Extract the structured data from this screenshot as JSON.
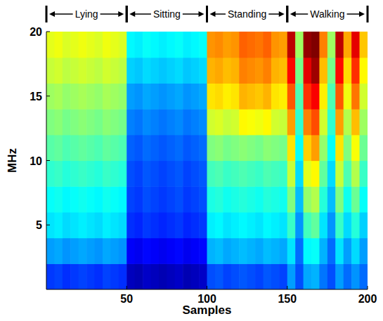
{
  "chart_data": {
    "type": "heatmap",
    "xlabel": "Samples",
    "ylabel": "MHz",
    "xlim": [
      0,
      200
    ],
    "ylim": [
      0,
      20
    ],
    "xticks": [
      50,
      100,
      150,
      200
    ],
    "yticks": [
      5,
      10,
      15,
      20
    ],
    "color_range": [
      0,
      1
    ],
    "segments": [
      {
        "label": "Lying",
        "start": 0,
        "end": 50
      },
      {
        "label": "Sitting",
        "start": 50,
        "end": 100
      },
      {
        "label": "Standing",
        "start": 100,
        "end": 150
      },
      {
        "label": "Walking",
        "start": 150,
        "end": 200
      }
    ],
    "cells": [
      [
        0.18,
        0.19,
        0.17,
        0.18,
        0.19,
        0.18,
        0.17,
        0.19,
        0.18,
        0.17,
        0.06,
        0.05,
        0.07,
        0.06,
        0.05,
        0.06,
        0.07,
        0.05,
        0.06,
        0.07,
        0.2,
        0.21,
        0.19,
        0.2,
        0.21,
        0.2,
        0.19,
        0.21,
        0.2,
        0.19,
        0.28,
        0.2,
        0.29,
        0.3,
        0.24,
        0.2,
        0.28,
        0.23,
        0.27,
        0.23
      ],
      [
        0.28,
        0.29,
        0.27,
        0.28,
        0.29,
        0.28,
        0.27,
        0.29,
        0.28,
        0.27,
        0.12,
        0.11,
        0.13,
        0.12,
        0.11,
        0.12,
        0.13,
        0.11,
        0.12,
        0.13,
        0.3,
        0.31,
        0.29,
        0.3,
        0.31,
        0.3,
        0.29,
        0.31,
        0.3,
        0.29,
        0.35,
        0.23,
        0.37,
        0.38,
        0.3,
        0.23,
        0.35,
        0.28,
        0.34,
        0.28
      ],
      [
        0.35,
        0.36,
        0.34,
        0.35,
        0.36,
        0.35,
        0.34,
        0.36,
        0.35,
        0.34,
        0.17,
        0.16,
        0.18,
        0.17,
        0.16,
        0.17,
        0.18,
        0.16,
        0.17,
        0.18,
        0.36,
        0.37,
        0.35,
        0.36,
        0.37,
        0.36,
        0.35,
        0.37,
        0.36,
        0.35,
        0.43,
        0.27,
        0.44,
        0.47,
        0.35,
        0.27,
        0.43,
        0.34,
        0.41,
        0.33
      ],
      [
        0.38,
        0.39,
        0.37,
        0.38,
        0.39,
        0.38,
        0.37,
        0.39,
        0.38,
        0.37,
        0.19,
        0.18,
        0.2,
        0.19,
        0.18,
        0.19,
        0.2,
        0.18,
        0.19,
        0.2,
        0.4,
        0.41,
        0.39,
        0.4,
        0.41,
        0.4,
        0.39,
        0.41,
        0.4,
        0.39,
        0.5,
        0.31,
        0.52,
        0.55,
        0.41,
        0.31,
        0.5,
        0.39,
        0.48,
        0.38
      ],
      [
        0.42,
        0.43,
        0.41,
        0.42,
        0.43,
        0.42,
        0.41,
        0.43,
        0.42,
        0.41,
        0.2,
        0.19,
        0.21,
        0.2,
        0.19,
        0.2,
        0.21,
        0.19,
        0.2,
        0.21,
        0.44,
        0.45,
        0.43,
        0.44,
        0.45,
        0.44,
        0.43,
        0.45,
        0.44,
        0.43,
        0.57,
        0.34,
        0.6,
        0.63,
        0.47,
        0.34,
        0.57,
        0.45,
        0.55,
        0.43
      ],
      [
        0.46,
        0.47,
        0.45,
        0.46,
        0.47,
        0.46,
        0.45,
        0.47,
        0.46,
        0.45,
        0.22,
        0.21,
        0.23,
        0.22,
        0.21,
        0.22,
        0.23,
        0.21,
        0.22,
        0.23,
        0.5,
        0.51,
        0.49,
        0.5,
        0.51,
        0.5,
        0.49,
        0.51,
        0.5,
        0.49,
        0.65,
        0.38,
        0.67,
        0.72,
        0.52,
        0.38,
        0.65,
        0.5,
        0.62,
        0.48
      ],
      [
        0.5,
        0.51,
        0.49,
        0.5,
        0.51,
        0.5,
        0.49,
        0.51,
        0.5,
        0.49,
        0.25,
        0.24,
        0.26,
        0.25,
        0.24,
        0.25,
        0.26,
        0.24,
        0.25,
        0.26,
        0.58,
        0.59,
        0.57,
        0.58,
        0.63,
        0.62,
        0.61,
        0.63,
        0.58,
        0.57,
        0.72,
        0.42,
        0.75,
        0.8,
        0.58,
        0.42,
        0.72,
        0.55,
        0.69,
        0.53
      ],
      [
        0.53,
        0.54,
        0.52,
        0.53,
        0.54,
        0.53,
        0.52,
        0.54,
        0.53,
        0.52,
        0.28,
        0.27,
        0.29,
        0.28,
        0.27,
        0.28,
        0.29,
        0.27,
        0.28,
        0.29,
        0.65,
        0.66,
        0.64,
        0.65,
        0.7,
        0.69,
        0.68,
        0.7,
        0.65,
        0.64,
        0.79,
        0.45,
        0.83,
        0.88,
        0.64,
        0.45,
        0.79,
        0.61,
        0.76,
        0.58
      ],
      [
        0.57,
        0.58,
        0.56,
        0.57,
        0.58,
        0.57,
        0.56,
        0.58,
        0.57,
        0.56,
        0.33,
        0.32,
        0.34,
        0.33,
        0.32,
        0.33,
        0.34,
        0.32,
        0.33,
        0.34,
        0.7,
        0.71,
        0.69,
        0.7,
        0.75,
        0.74,
        0.73,
        0.75,
        0.7,
        0.69,
        0.87,
        0.49,
        0.9,
        0.97,
        0.69,
        0.49,
        0.87,
        0.66,
        0.83,
        0.63
      ],
      [
        0.6,
        0.61,
        0.59,
        0.6,
        0.61,
        0.6,
        0.59,
        0.61,
        0.6,
        0.59,
        0.37,
        0.36,
        0.38,
        0.37,
        0.36,
        0.37,
        0.38,
        0.36,
        0.37,
        0.38,
        0.73,
        0.74,
        0.72,
        0.73,
        0.78,
        0.77,
        0.76,
        0.78,
        0.73,
        0.72,
        0.94,
        0.53,
        0.98,
        1.0,
        0.75,
        0.53,
        0.94,
        0.71,
        0.9,
        0.68
      ]
    ]
  }
}
